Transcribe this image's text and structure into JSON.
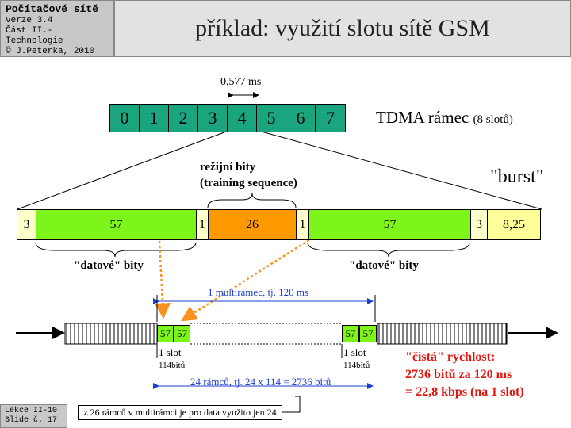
{
  "header": {
    "course_title": "Počítačové sítě",
    "version": "verze 3.4",
    "part": "Část II.-Technologie",
    "copyright": "© J.Peterka, 2010",
    "slide_title": "příklad: využití slotu sítě GSM"
  },
  "footer": {
    "lecture": "Lekce II-10",
    "slide": "Slide č. 17"
  },
  "tdma": {
    "slot_duration": "0,577 ms",
    "slots": [
      "0",
      "1",
      "2",
      "3",
      "4",
      "5",
      "6",
      "7"
    ],
    "frame_label": "TDMA rámec",
    "frame_label_small": "(8 slotů)"
  },
  "burst": {
    "label": "\"burst\"",
    "overhead_label_1": "režijní bity",
    "overhead_label_2": "(training sequence)",
    "segments": [
      "3",
      "57",
      "1",
      "26",
      "1",
      "57",
      "3",
      "8,25"
    ],
    "data_label_left": "\"datové\" bity",
    "data_label_right": "\"datové\" bity"
  },
  "multiframe": {
    "span_label": "1 multirámec, tj. 120 ms",
    "slot_values": [
      "57",
      "57"
    ],
    "slot_label": "1 slot",
    "slot_bits": "114bitů",
    "frames_label": "24 rámců, tj. 24 x 114 = 2736 bitů",
    "note": "z 26 rámců v multirámci je pro data využito jen 24"
  },
  "rate": {
    "line1": "\"čistá\" rychlost:",
    "line2": "2736 bitů za 120 ms",
    "line3": "= 22,8 kbps (na 1 slot)"
  },
  "colors": {
    "slot_green": "#1aa57e",
    "data_green": "#7ef51a",
    "overhead_orange": "#ff9900",
    "tail_yellow": "#ffffcc",
    "guard_yellow": "#ffff99",
    "blue_label": "#1f3fcf",
    "red_label": "#e2160f"
  }
}
